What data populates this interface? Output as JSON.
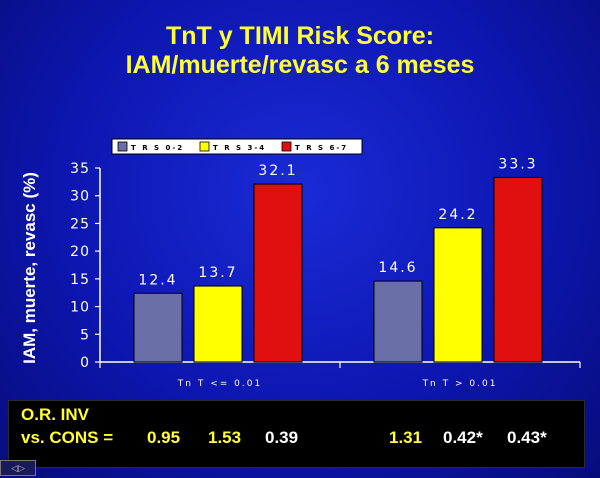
{
  "title_line1": "TnT y TIMI Risk Score:",
  "title_line2": "IAM/muerte/revasc a 6 meses",
  "chart_data": {
    "type": "bar",
    "categories": [
      "TnT <= 0.01",
      "TnT > 0.01"
    ],
    "series": [
      {
        "name": "TRS 0-2",
        "color": "#6a6fa8",
        "values": [
          12.4,
          14.6
        ]
      },
      {
        "name": "TRS 3-4",
        "color": "#ffff00",
        "values": [
          13.7,
          24.2
        ]
      },
      {
        "name": "TRS 6-7",
        "color": "#e01010",
        "values": [
          32.1,
          33.3
        ]
      }
    ],
    "value_labels": [
      [
        "12.4",
        "14.6"
      ],
      [
        "13.7",
        "24.2"
      ],
      [
        "32.1",
        "33.3"
      ]
    ],
    "category_labels": [
      "Tn T <= 0.01",
      "Tn T > 0.01"
    ],
    "legend_labels": [
      "T R S 0-2",
      "T R S 3-4",
      "T R S 6-7"
    ],
    "ylabel": "IAM, muerte, revasc (%)",
    "ylim": [
      0,
      35
    ],
    "yticks": [
      "0",
      "5",
      "10",
      "15",
      "20",
      "25",
      "30",
      "35"
    ],
    "legend_position": "top-left",
    "grid": false
  },
  "footer": {
    "line1": "O.R. INV",
    "line2": "vs. CONS =",
    "values": [
      "0.95",
      "1.53",
      "0.39",
      "1.31",
      "0.42*",
      "0.43*"
    ],
    "value_colors": [
      "#ffff33",
      "#ffff33",
      "#ffffff",
      "#ffff33",
      "#ffffff",
      "#ffffff"
    ]
  },
  "nav_icon": "prev-slide-icon"
}
